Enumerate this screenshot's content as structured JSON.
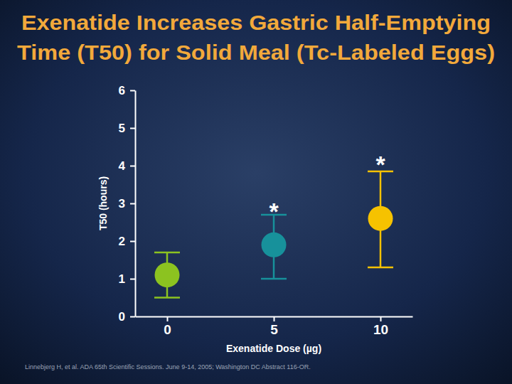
{
  "chart_data": {
    "type": "scatter",
    "title": [
      "Exenatide Increases Gastric Half-Emptying",
      "Time (T50) for Solid Meal (Tc-Labeled Eggs)"
    ],
    "x_label": "Exenatide Dose (µg)",
    "y_label": "T50 (hours)",
    "note": "Linnebjerg H, et al. ADA 65th Scientific Sessions. June 9-14, 2005; Washington DC Abstract 116-OR.",
    "series": [
      {
        "x": [
          0,
          5,
          10
        ],
        "values": [
          1.1,
          1.9,
          2.6
        ],
        "lower": [
          0.5,
          1.0,
          1.3
        ],
        "upper": [
          1.7,
          2.7,
          3.85
        ],
        "colors": [
          "#8cc320",
          "#17919b",
          "#f6c200"
        ],
        "marker": "circle"
      }
    ],
    "annotations": [
      {
        "text": "*",
        "x": 5,
        "y": 2.9
      },
      {
        "text": "*",
        "x": 10,
        "y": 4.15
      }
    ],
    "xlim": [
      -1.5,
      11.5
    ],
    "xticks": [
      0,
      5,
      10
    ],
    "ylim": [
      0,
      6
    ],
    "yticks": [
      0,
      1,
      2,
      3,
      4,
      5,
      6
    ],
    "grid": false
  }
}
